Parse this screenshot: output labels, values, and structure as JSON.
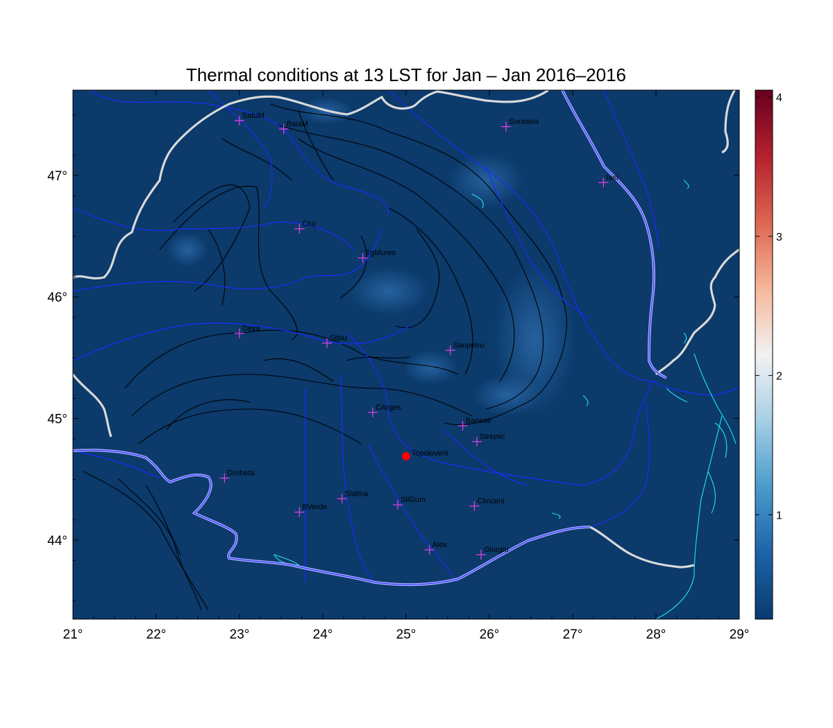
{
  "title": "Thermal conditions at 13 LST for Jan – Jan  2016–2016",
  "map": {
    "lon_range": [
      21,
      29
    ],
    "lat_range": [
      43.35,
      47.7
    ],
    "background_color": "#0b3a6b",
    "x_ticks": [
      {
        "lon": 21,
        "label": "21°"
      },
      {
        "lon": 22,
        "label": "22°"
      },
      {
        "lon": 23,
        "label": "23°"
      },
      {
        "lon": 24,
        "label": "24°"
      },
      {
        "lon": 25,
        "label": "25°"
      },
      {
        "lon": 26,
        "label": "26°"
      },
      {
        "lon": 27,
        "label": "27°"
      },
      {
        "lon": 28,
        "label": "28°"
      },
      {
        "lon": 29,
        "label": "29°"
      }
    ],
    "y_ticks": [
      {
        "lat": 44,
        "label": "44°"
      },
      {
        "lat": 45,
        "label": "45°"
      },
      {
        "lat": 46,
        "label": "46°"
      },
      {
        "lat": 47,
        "label": "47°"
      }
    ],
    "cities": [
      {
        "name": "SatuM",
        "lon": 23.0,
        "lat": 47.45
      },
      {
        "name": "BaiaM",
        "lon": 23.53,
        "lat": 47.38
      },
      {
        "name": "Suceava",
        "lon": 26.2,
        "lat": 47.4
      },
      {
        "name": "Iasi",
        "lon": 27.37,
        "lat": 46.94
      },
      {
        "name": "Cluj",
        "lon": 23.72,
        "lat": 46.56
      },
      {
        "name": "TgMures",
        "lon": 24.48,
        "lat": 46.32
      },
      {
        "name": "Deva",
        "lon": 23.0,
        "lat": 45.7
      },
      {
        "name": "Sibiu",
        "lon": 24.05,
        "lat": 45.62
      },
      {
        "name": "Sanpetru",
        "lon": 25.53,
        "lat": 45.56
      },
      {
        "name": "CArges",
        "lon": 24.6,
        "lat": 45.05
      },
      {
        "name": "Banesti",
        "lon": 25.68,
        "lat": 44.94
      },
      {
        "name": "Strejnic",
        "lon": 25.85,
        "lat": 44.81
      },
      {
        "name": "Drobeta",
        "lon": 22.82,
        "lat": 44.51
      },
      {
        "name": "Slatina",
        "lon": 24.23,
        "lat": 44.34
      },
      {
        "name": "SilGum",
        "lon": 24.9,
        "lat": 44.29
      },
      {
        "name": "Clinceni",
        "lon": 25.82,
        "lat": 44.28
      },
      {
        "name": "BVerde",
        "lon": 23.72,
        "lat": 44.23
      },
      {
        "name": "Alex",
        "lon": 25.28,
        "lat": 43.92
      },
      {
        "name": "Giurgiu",
        "lon": 25.9,
        "lat": 43.88
      }
    ],
    "highlight": {
      "name": "Topoloveni",
      "lon": 25.0,
      "lat": 44.69,
      "color": "#ff0000"
    },
    "city_marker_color": "#e040e0"
  },
  "colorbar": {
    "min": 0.25,
    "max": 4.05,
    "ticks": [
      {
        "value": 1,
        "label": "1"
      },
      {
        "value": 2,
        "label": "2"
      },
      {
        "value": 3,
        "label": "3"
      },
      {
        "value": 4,
        "label": "4"
      }
    ],
    "colors": [
      "#083b6e",
      "#1d63a8",
      "#4a9bcb",
      "#a6cfe5",
      "#f2f2f2",
      "#f6b799",
      "#dc6651",
      "#b4212d",
      "#67001f"
    ]
  }
}
